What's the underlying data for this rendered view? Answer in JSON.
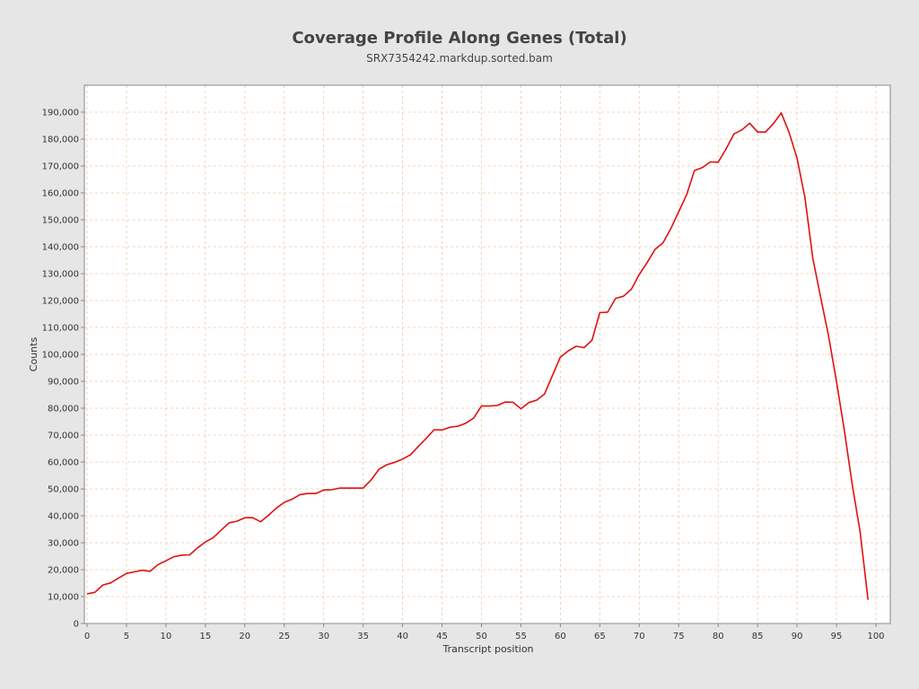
{
  "chart_data": {
    "type": "line",
    "title": "Coverage Profile Along Genes (Total)",
    "subtitle": "SRX7354242.markdup.sorted.bam",
    "xlabel": "Transcript position",
    "ylabel": "Counts",
    "xlim": [
      0,
      100
    ],
    "ylim": [
      0,
      200000
    ],
    "x_ticks": [
      0,
      5,
      10,
      15,
      20,
      25,
      30,
      35,
      40,
      45,
      50,
      55,
      60,
      65,
      70,
      75,
      80,
      85,
      90,
      95,
      100
    ],
    "x_tick_labels": [
      "0",
      "5",
      "10",
      "15",
      "20",
      "25",
      "30",
      "35",
      "40",
      "45",
      "50",
      "55",
      "60",
      "65",
      "70",
      "75",
      "80",
      "85",
      "90",
      "95",
      "100"
    ],
    "y_ticks": [
      0,
      10000,
      20000,
      30000,
      40000,
      50000,
      60000,
      70000,
      80000,
      90000,
      100000,
      110000,
      120000,
      130000,
      140000,
      150000,
      160000,
      170000,
      180000,
      190000
    ],
    "y_tick_labels": [
      "0",
      "10,000",
      "20,000",
      "30,000",
      "40,000",
      "50,000",
      "60,000",
      "70,000",
      "80,000",
      "90,000",
      "100,000",
      "110,000",
      "120,000",
      "130,000",
      "140,000",
      "150,000",
      "160,000",
      "170,000",
      "180,000",
      "190,000"
    ],
    "grid": true,
    "colors": {
      "background": "#e6e6e6",
      "plot_background": "#ffffff",
      "grid": "#f0c8a8",
      "line": "#e01010",
      "axis": "#888888"
    },
    "series": [
      {
        "x": [
          0,
          1,
          2,
          3,
          4,
          5,
          6,
          7,
          8,
          9,
          10,
          11,
          12,
          13,
          14,
          15,
          16,
          17,
          18,
          19,
          20,
          21,
          22,
          23,
          24,
          25,
          26,
          27,
          28,
          29,
          30,
          31,
          32,
          33,
          34,
          35,
          36,
          37,
          38,
          39,
          40,
          41,
          42,
          43,
          44,
          45,
          46,
          47,
          48,
          49,
          50,
          51,
          52,
          53,
          54,
          55,
          56,
          57,
          58,
          59,
          60,
          61,
          62,
          63,
          64,
          65,
          66,
          67,
          68,
          69,
          70,
          71,
          72,
          73,
          74,
          75,
          76,
          77,
          78,
          79,
          80,
          81,
          82,
          83,
          84,
          85,
          86,
          87,
          88,
          89,
          90,
          91,
          92,
          93,
          94,
          95,
          96,
          97,
          98,
          99
        ],
        "y": [
          11000,
          11600,
          14300,
          15100,
          16900,
          18600,
          19200,
          19800,
          19400,
          21900,
          23300,
          24800,
          25400,
          25500,
          28100,
          30300,
          31900,
          34700,
          37400,
          38000,
          39300,
          39300,
          37800,
          40200,
          42900,
          45000,
          46200,
          47900,
          48300,
          48300,
          49600,
          49700,
          50300,
          50300,
          50300,
          50300,
          53300,
          57300,
          59000,
          59900,
          61100,
          62700,
          65800,
          68800,
          72000,
          71900,
          72900,
          73300,
          74400,
          76300,
          80800,
          80800,
          81000,
          82300,
          82200,
          79800,
          82100,
          83000,
          85300,
          92200,
          99000,
          101300,
          103000,
          102500,
          105200,
          115500,
          115700,
          120800,
          121600,
          124200,
          129700,
          134100,
          139000,
          141400,
          146700,
          153000,
          159300,
          168300,
          169400,
          171500,
          171400,
          176300,
          181900,
          183400,
          185900,
          182600,
          182600,
          185700,
          189700,
          182400,
          172900,
          158300,
          135700,
          121100,
          106800,
          89900,
          71700,
          51600,
          34000,
          8800
        ]
      }
    ]
  }
}
